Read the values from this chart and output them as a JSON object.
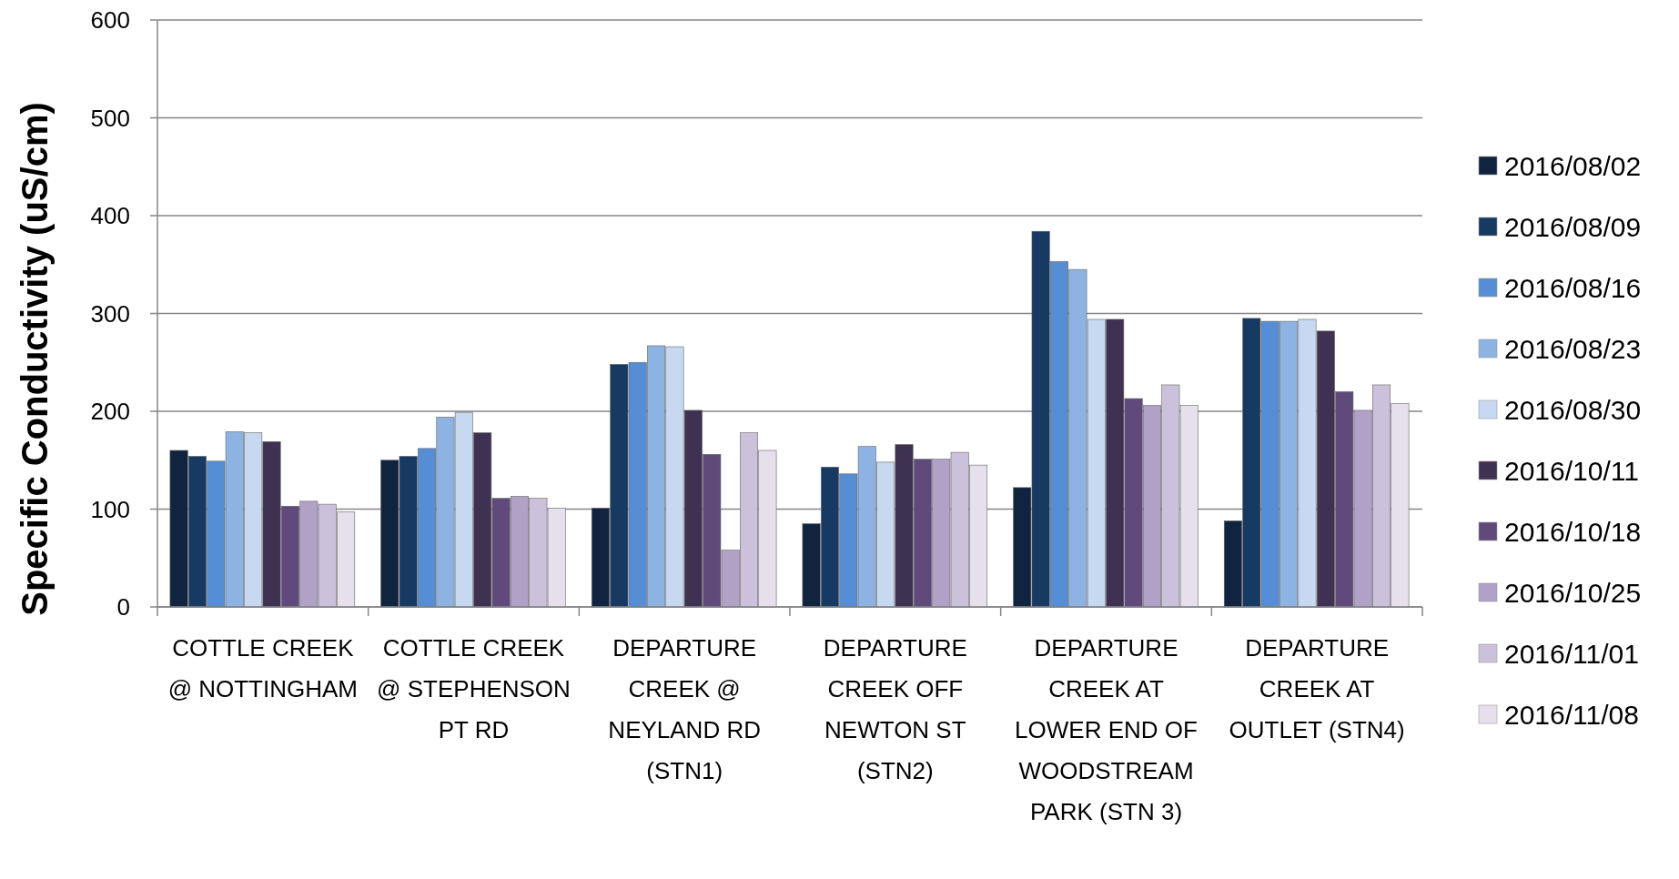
{
  "chart_data": {
    "type": "bar",
    "ylabel": "Specific Conductivity (uS/cm)",
    "categories": [
      "COTTLE CREEK @ NOTTINGHAM",
      "COTTLE CREEK @ STEPHENSON PT RD",
      "DEPARTURE CREEK @ NEYLAND RD (STN1)",
      "DEPARTURE CREEK OFF NEWTON ST (STN2)",
      "DEPARTURE CREEK AT LOWER END OF WOODSTREAM PARK (STN 3)",
      "DEPARTURE CREEK AT OUTLET (STN4)"
    ],
    "series": [
      {
        "name": "2016/08/02",
        "color": "#10233f",
        "values": [
          160,
          150,
          101,
          85,
          122,
          88
        ]
      },
      {
        "name": "2016/08/09",
        "color": "#173a63",
        "values": [
          154,
          154,
          248,
          143,
          384,
          295
        ]
      },
      {
        "name": "2016/08/16",
        "color": "#558ed5",
        "values": [
          149,
          162,
          250,
          136,
          353,
          292
        ]
      },
      {
        "name": "2016/08/23",
        "color": "#8db3e2",
        "values": [
          179,
          194,
          267,
          164,
          345,
          292
        ]
      },
      {
        "name": "2016/08/30",
        "color": "#c6d9f1",
        "values": [
          178,
          199,
          266,
          148,
          294,
          294
        ]
      },
      {
        "name": "2016/10/11",
        "color": "#3f3151",
        "values": [
          169,
          178,
          201,
          166,
          294,
          282
        ]
      },
      {
        "name": "2016/10/18",
        "color": "#604a7b",
        "values": [
          103,
          111,
          156,
          151,
          213,
          220
        ]
      },
      {
        "name": "2016/10/25",
        "color": "#b2a1c7",
        "values": [
          108,
          113,
          58,
          151,
          206,
          201
        ]
      },
      {
        "name": "2016/11/01",
        "color": "#ccc1da",
        "values": [
          105,
          111,
          178,
          158,
          227,
          227
        ]
      },
      {
        "name": "2016/11/08",
        "color": "#e5e0ec",
        "values": [
          97,
          101,
          160,
          145,
          206,
          208
        ]
      }
    ],
    "ylim": [
      0,
      600
    ],
    "yticks": [
      0,
      100,
      200,
      300,
      400,
      500,
      600
    ],
    "grid": "y",
    "legend": "right"
  }
}
